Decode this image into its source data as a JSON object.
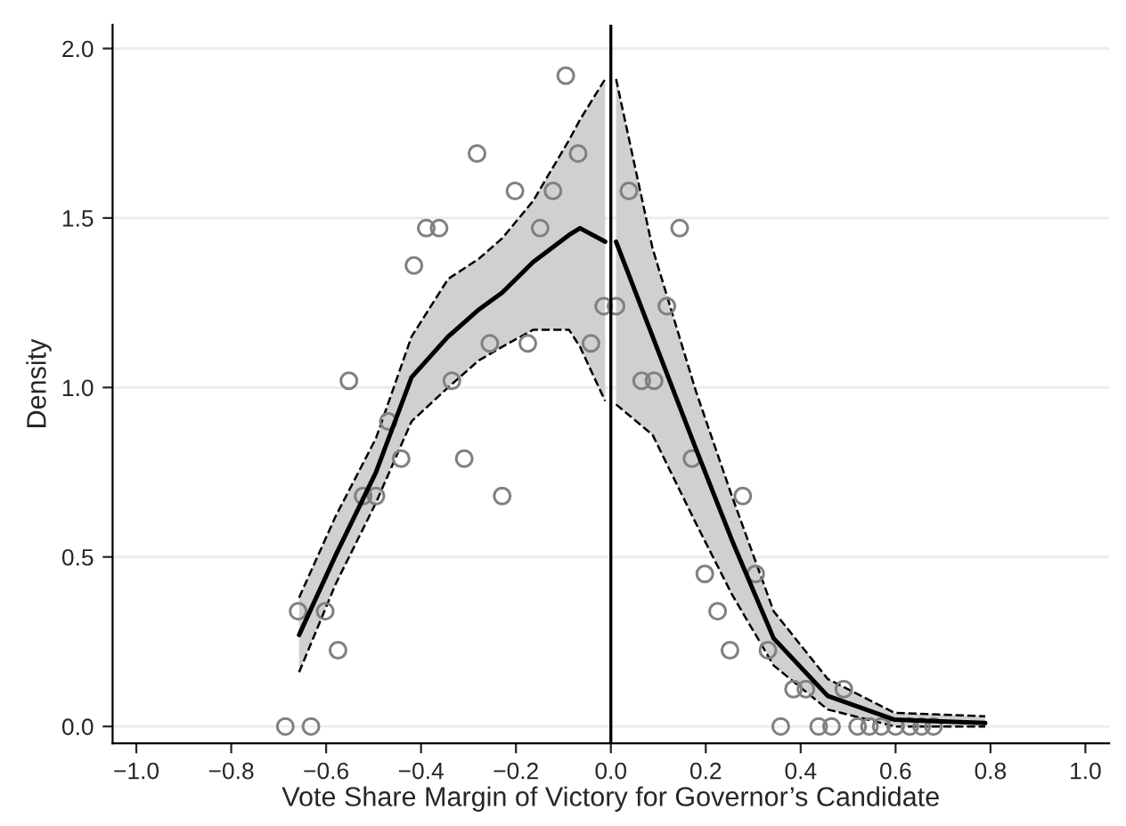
{
  "chart_data": {
    "type": "scatter",
    "xlabel": "Vote Share Margin of Victory for Governor’s Candidate",
    "ylabel": "Density",
    "xlim": [
      -1.05,
      1.05
    ],
    "xticks": [
      {
        "value": -1.0,
        "label": "−1.0"
      },
      {
        "value": -0.8,
        "label": "−0.8"
      },
      {
        "value": -0.6,
        "label": "−0.6"
      },
      {
        "value": -0.4,
        "label": "−0.4"
      },
      {
        "value": -0.2,
        "label": "−0.2"
      },
      {
        "value": 0.0,
        "label": "0.0"
      },
      {
        "value": 0.2,
        "label": "0.2"
      },
      {
        "value": 0.4,
        "label": "0.4"
      },
      {
        "value": 0.6,
        "label": "0.6"
      },
      {
        "value": 0.8,
        "label": "0.8"
      },
      {
        "value": 1.0,
        "label": "1.0"
      }
    ],
    "ylim": [
      -0.05,
      2.07
    ],
    "yticks": [
      {
        "value": 0.0,
        "label": "0.0"
      },
      {
        "value": 0.5,
        "label": "0.5"
      },
      {
        "value": 1.0,
        "label": "1.0"
      },
      {
        "value": 1.5,
        "label": "1.5"
      },
      {
        "value": 2.0,
        "label": "2.0"
      }
    ],
    "grid": "y",
    "ref_lines": [
      {
        "axis": "x",
        "value": 0,
        "color": "#000000"
      }
    ],
    "series": [
      {
        "marker": "circle",
        "color": "#808080",
        "x": [
          -0.686,
          -0.659,
          -0.632,
          -0.602,
          -0.575,
          -0.552,
          -0.522,
          -0.495,
          -0.469,
          -0.442,
          -0.415,
          -0.389,
          -0.362,
          -0.335,
          -0.309,
          -0.282,
          -0.255,
          -0.229,
          -0.202,
          -0.175,
          -0.149,
          -0.122,
          -0.095,
          -0.069,
          -0.042,
          -0.015,
          0.011,
          0.038,
          0.065,
          0.091,
          0.118,
          0.145,
          0.171,
          0.198,
          0.225,
          0.251,
          0.278,
          0.305,
          0.331,
          0.358,
          0.385,
          0.411,
          0.438,
          0.465,
          0.491,
          0.52,
          0.545,
          0.57,
          0.6,
          0.63,
          0.655,
          0.68
        ],
        "values": [
          0.0,
          0.34,
          0.0,
          0.34,
          0.225,
          1.02,
          0.68,
          0.68,
          0.9,
          0.79,
          1.36,
          1.47,
          1.47,
          1.02,
          0.79,
          1.69,
          1.13,
          0.68,
          1.58,
          1.13,
          1.47,
          1.58,
          1.92,
          1.69,
          1.13,
          1.24,
          1.24,
          1.58,
          1.02,
          1.02,
          1.24,
          1.47,
          0.79,
          0.45,
          0.34,
          0.225,
          0.68,
          0.45,
          0.225,
          0.0,
          0.11,
          0.11,
          0.0,
          0.0,
          0.11,
          0.0,
          0.0,
          0.0,
          0.0,
          0.0,
          0.0,
          0.0
        ]
      },
      {
        "type": "line",
        "marker": "none",
        "color": "#000000",
        "line_style": "solid",
        "x": [
          -0.657,
          -0.58,
          -0.495,
          -0.42,
          -0.343,
          -0.278,
          -0.229,
          -0.164,
          -0.088,
          -0.065,
          -0.012
        ],
        "values": [
          0.27,
          0.505,
          0.75,
          1.03,
          1.15,
          1.23,
          1.28,
          1.37,
          1.45,
          1.47,
          1.43
        ],
        "upper": [
          0.38,
          0.62,
          0.85,
          1.15,
          1.32,
          1.38,
          1.44,
          1.55,
          1.73,
          1.79,
          1.91
        ],
        "lower": [
          0.16,
          0.42,
          0.66,
          0.9,
          1.0,
          1.08,
          1.12,
          1.17,
          1.17,
          1.12,
          0.96
        ]
      },
      {
        "type": "line",
        "marker": "none",
        "color": "#000000",
        "line_style": "solid",
        "x": [
          0.011,
          0.088,
          0.179,
          0.255,
          0.343,
          0.457,
          0.598,
          0.789
        ],
        "values": [
          1.43,
          1.15,
          0.82,
          0.55,
          0.26,
          0.09,
          0.02,
          0.01
        ],
        "upper": [
          1.91,
          1.41,
          0.99,
          0.68,
          0.34,
          0.14,
          0.04,
          0.03
        ],
        "lower": [
          0.95,
          0.86,
          0.6,
          0.39,
          0.18,
          0.05,
          0.0,
          0.0
        ]
      },
      {
        "type": "line",
        "marker": "none",
        "color": "#000000",
        "line_style": "dashed",
        "x": [
          -0.657,
          -0.58,
          -0.495,
          -0.42,
          -0.343,
          -0.278,
          -0.229,
          -0.164,
          -0.088,
          -0.065,
          -0.012
        ],
        "values": [
          0.38,
          0.62,
          0.85,
          1.15,
          1.32,
          1.38,
          1.44,
          1.55,
          1.73,
          1.79,
          1.91
        ]
      },
      {
        "type": "line",
        "marker": "none",
        "color": "#000000",
        "line_style": "dashed",
        "x": [
          -0.657,
          -0.58,
          -0.495,
          -0.42,
          -0.343,
          -0.278,
          -0.229,
          -0.164,
          -0.088,
          -0.065,
          -0.012
        ],
        "values": [
          0.16,
          0.42,
          0.66,
          0.9,
          1.0,
          1.08,
          1.12,
          1.17,
          1.17,
          1.12,
          0.96
        ]
      },
      {
        "type": "line",
        "marker": "none",
        "color": "#000000",
        "line_style": "dashed",
        "x": [
          0.011,
          0.088,
          0.179,
          0.255,
          0.343,
          0.457,
          0.598,
          0.789
        ],
        "values": [
          1.91,
          1.41,
          0.99,
          0.68,
          0.34,
          0.14,
          0.04,
          0.03
        ]
      },
      {
        "type": "line",
        "marker": "none",
        "color": "#000000",
        "line_style": "dashed",
        "x": [
          0.011,
          0.088,
          0.179,
          0.255,
          0.343,
          0.457,
          0.598,
          0.789
        ],
        "values": [
          0.95,
          0.86,
          0.6,
          0.39,
          0.18,
          0.05,
          0.0,
          0.0
        ]
      }
    ]
  }
}
